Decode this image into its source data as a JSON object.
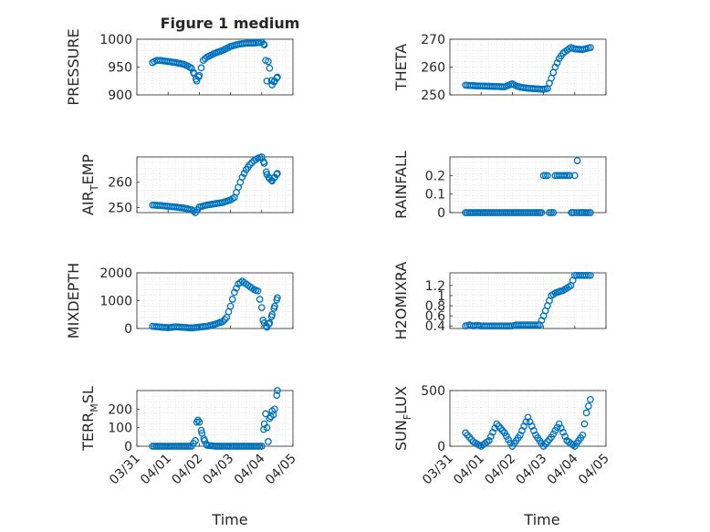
{
  "figure": {
    "title": "Figure 1 medium",
    "marker_color": "#0072BD",
    "x_ticks": [
      "03/31",
      "04/01",
      "04/02",
      "04/03",
      "04/04",
      "04/05"
    ],
    "x_label": "Time"
  },
  "chart_data": [
    {
      "type": "scatter",
      "id": "pressure",
      "ylabel": "PRESSURE",
      "ylim": [
        900,
        1000
      ],
      "yticks": [
        900,
        950,
        1000
      ],
      "ylabels": [
        "900",
        "950",
        "1000"
      ],
      "x": [
        "03/31 12:00",
        "03/31 15:00",
        "03/31 18:00",
        "03/31 21:00",
        "04/01 00:00",
        "04/01 06:00",
        "04/01 12:00",
        "04/01 15:00",
        "04/01 18:00",
        "04/01 20:00",
        "04/01 22:00",
        "04/02 00:00",
        "04/02 03:00",
        "04/02 06:00",
        "04/02 12:00",
        "04/02 18:00",
        "04/03 00:00",
        "04/03 06:00",
        "04/03 12:00",
        "04/03 18:00",
        "04/03 22:00",
        "04/04 00:00",
        "04/04 02:00",
        "04/04 03:00",
        "04/04 04:00",
        "04/04 05:00",
        "04/04 06:00",
        "04/04 08:00",
        "04/04 10:00",
        "04/04 12:00"
      ],
      "y": [
        958,
        962,
        962,
        961,
        960,
        958,
        955,
        952,
        948,
        938,
        925,
        935,
        962,
        968,
        975,
        980,
        987,
        991,
        993,
        993,
        994,
        995,
        990,
        962,
        925,
        960,
        948,
        918,
        925,
        932
      ]
    },
    {
      "type": "scatter",
      "id": "theta",
      "ylabel": "THETA",
      "ylim": [
        250,
        270
      ],
      "yticks": [
        250,
        260,
        270
      ],
      "ylabels": [
        "250",
        "260",
        "270"
      ],
      "x": [
        "03/31 12:00",
        "03/31 18:00",
        "04/01 00:00",
        "04/01 06:00",
        "04/01 12:00",
        "04/01 18:00",
        "04/02 00:00",
        "04/02 03:00",
        "04/02 06:00",
        "04/02 12:00",
        "04/02 18:00",
        "04/03 00:00",
        "04/03 03:00",
        "04/03 06:00",
        "04/03 09:00",
        "04/03 12:00",
        "04/03 15:00",
        "04/03 18:00",
        "04/03 21:00",
        "04/04 00:00",
        "04/04 06:00",
        "04/04 12:00"
      ],
      "y": [
        253.5,
        253.3,
        253.2,
        253.1,
        253.0,
        252.9,
        254.0,
        253.2,
        252.8,
        252.4,
        252.2,
        252.0,
        252.3,
        256,
        260,
        263,
        265,
        266,
        267,
        266.5,
        266.3,
        267
      ]
    },
    {
      "type": "scatter",
      "id": "airtemp",
      "ylabel": "AIR",
      "ylabel_sub": "T",
      "ylabel_tail": "EMP",
      "ylim": [
        248,
        270
      ],
      "yticks": [
        250,
        260
      ],
      "ylabels": [
        "250",
        "260"
      ],
      "x": [
        "03/31 12:00",
        "03/31 18:00",
        "04/01 00:00",
        "04/01 06:00",
        "04/01 12:00",
        "04/01 18:00",
        "04/01 21:00",
        "04/02 00:00",
        "04/02 06:00",
        "04/02 12:00",
        "04/02 18:00",
        "04/03 00:00",
        "04/03 03:00",
        "04/03 06:00",
        "04/03 09:00",
        "04/03 12:00",
        "04/03 15:00",
        "04/03 18:00",
        "04/03 21:00",
        "04/04 00:00",
        "04/04 02:00",
        "04/04 04:00",
        "04/04 06:00",
        "04/04 08:00",
        "04/04 10:00",
        "04/04 12:00"
      ],
      "y": [
        251,
        250.8,
        250.5,
        250.2,
        249.8,
        249.2,
        248.0,
        250.2,
        251.0,
        251.5,
        252.0,
        253.0,
        254.0,
        258,
        262,
        265,
        267,
        268.5,
        269.5,
        270,
        267.5,
        263,
        261.5,
        260.5,
        262,
        263.5
      ]
    },
    {
      "type": "scatter",
      "id": "rainfall",
      "ylabel": "RAINFALL",
      "ylim": [
        0,
        0.3
      ],
      "yticks": [
        0,
        0.1,
        0.2
      ],
      "ylabels": [
        "0",
        "0.1",
        "0.2"
      ],
      "x": [
        "03/31 12:00",
        "04/01 00:00",
        "04/01 12:00",
        "04/02 00:00",
        "04/02 12:00",
        "04/02 21:00",
        "04/03 00:00",
        "04/03 03:00",
        "04/03 06:00",
        "04/03 09:00",
        "04/03 12:00",
        "04/03 15:00",
        "04/03 18:00",
        "04/03 20:00",
        "04/03 22:00",
        "04/04 00:00",
        "04/04 02:00",
        "04/04 06:00",
        "04/04 12:00"
      ],
      "y": [
        0,
        0,
        0,
        0,
        0,
        0,
        0.2,
        0.2,
        0,
        0.2,
        0.2,
        0.2,
        0.2,
        0.2,
        0,
        0.2,
        0.28,
        0,
        0
      ]
    },
    {
      "type": "scatter",
      "id": "mixdepth",
      "ylabel": "MIXDEPTH",
      "ylim": [
        0,
        2000
      ],
      "yticks": [
        0,
        1000,
        2000
      ],
      "ylabels": [
        "0",
        "1000",
        "2000"
      ],
      "x": [
        "03/31 12:00",
        "03/31 18:00",
        "04/01 00:00",
        "04/01 06:00",
        "04/01 12:00",
        "04/01 18:00",
        "04/02 00:00",
        "04/02 06:00",
        "04/02 12:00",
        "04/02 18:00",
        "04/02 21:00",
        "04/03 00:00",
        "04/03 03:00",
        "04/03 06:00",
        "04/03 09:00",
        "04/03 12:00",
        "04/03 15:00",
        "04/03 18:00",
        "04/03 21:00",
        "04/04 00:00",
        "04/04 01:00",
        "04/04 02:00",
        "04/04 04:00",
        "04/04 06:00",
        "04/04 08:00",
        "04/04 10:00",
        "04/04 12:00"
      ],
      "y": [
        80,
        50,
        30,
        60,
        40,
        20,
        50,
        80,
        150,
        250,
        400,
        800,
        1300,
        1600,
        1700,
        1600,
        1500,
        1400,
        1350,
        750,
        300,
        200,
        50,
        200,
        500,
        800,
        1100
      ]
    },
    {
      "type": "scatter",
      "id": "h2omixra",
      "ylabel": "H2OMIXRA",
      "ylim": [
        0.35,
        1.45
      ],
      "yticks": [
        0.4,
        0.6,
        0.8,
        1.0,
        1.2
      ],
      "ylabels": [
        "0.4",
        "0.6",
        "0.8",
        "1",
        "1.2"
      ],
      "x": [
        "03/31 12:00",
        "03/31 15:00",
        "03/31 18:00",
        "03/31 21:00",
        "04/01 00:00",
        "04/01 12:00",
        "04/02 00:00",
        "04/02 03:00",
        "04/02 12:00",
        "04/02 21:00",
        "04/03 00:00",
        "04/03 03:00",
        "04/03 06:00",
        "04/03 09:00",
        "04/03 12:00",
        "04/03 15:00",
        "04/03 18:00",
        "04/03 21:00",
        "04/04 00:00",
        "04/04 06:00",
        "04/04 12:00"
      ],
      "y": [
        0.4,
        0.42,
        0.4,
        0.41,
        0.4,
        0.4,
        0.4,
        0.42,
        0.42,
        0.42,
        0.6,
        0.8,
        1.0,
        1.05,
        1.08,
        1.1,
        1.15,
        1.2,
        1.4,
        1.4,
        1.4
      ]
    },
    {
      "type": "scatter",
      "id": "terrmsl",
      "ylabel": "TERR",
      "ylabel_sub": "M",
      "ylabel_tail": "SL",
      "ylim": [
        0,
        300
      ],
      "yticks": [
        0,
        100,
        200
      ],
      "ylabels": [
        "0",
        "100",
        "200"
      ],
      "x": [
        "03/31 12:00",
        "04/01 00:00",
        "04/01 12:00",
        "04/01 18:00",
        "04/01 21:00",
        "04/01 22:00",
        "04/01 23:00",
        "04/02 00:00",
        "04/02 02:00",
        "04/02 04:00",
        "04/02 06:00",
        "04/02 12:00",
        "04/03 00:00",
        "04/03 12:00",
        "04/03 18:00",
        "04/04 00:00",
        "04/04 02:00",
        "04/04 03:00",
        "04/04 04:00",
        "04/04 05:00",
        "04/04 06:00",
        "04/04 07:00",
        "04/04 08:00",
        "04/04 09:00",
        "04/04 10:00",
        "04/04 12:00"
      ],
      "y": [
        0,
        0,
        0,
        0,
        30,
        130,
        140,
        130,
        70,
        30,
        5,
        0,
        0,
        0,
        0,
        0,
        120,
        175,
        100,
        25,
        150,
        160,
        190,
        170,
        200,
        300
      ]
    },
    {
      "type": "scatter",
      "id": "sunflux",
      "ylabel": "SUN",
      "ylabel_sub": "F",
      "ylabel_tail": "LUX",
      "ylim": [
        0,
        500
      ],
      "yticks": [
        0,
        500
      ],
      "ylabels": [
        "0",
        "500"
      ],
      "x": [
        "03/31 12:00",
        "03/31 18:00",
        "04/01 00:00",
        "04/01 06:00",
        "04/01 12:00",
        "04/01 18:00",
        "04/02 00:00",
        "04/02 06:00",
        "04/02 12:00",
        "04/02 18:00",
        "04/03 00:00",
        "04/03 06:00",
        "04/03 12:00",
        "04/03 18:00",
        "04/04 00:00",
        "04/04 06:00",
        "04/04 09:00",
        "04/04 12:00"
      ],
      "y": [
        120,
        40,
        0,
        50,
        200,
        120,
        0,
        100,
        260,
        100,
        0,
        80,
        200,
        50,
        0,
        100,
        300,
        420
      ]
    }
  ]
}
